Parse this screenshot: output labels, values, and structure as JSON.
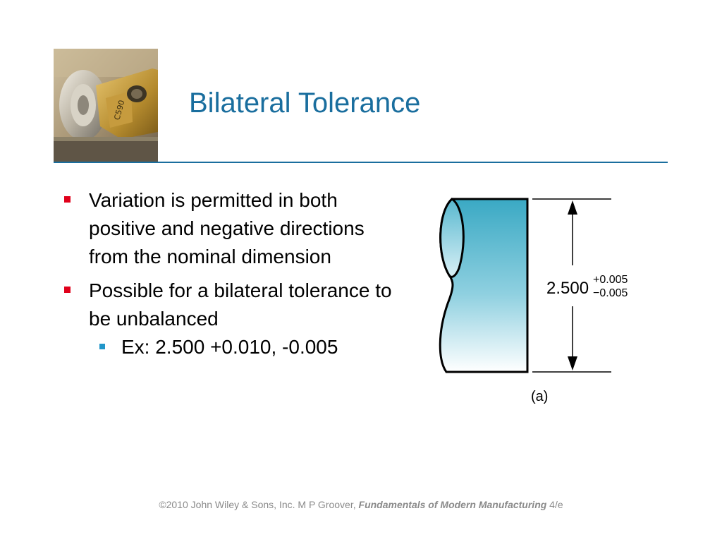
{
  "slide": {
    "title": "Bilateral Tolerance",
    "photo_description_icon": "machining-tool-photo",
    "bullets": [
      {
        "text": "Variation is permitted in both positive and negative directions from the nominal dimension"
      },
      {
        "text": "Possible for a bilateral tolerance to be unbalanced"
      }
    ],
    "sub_bullets": [
      {
        "text": "Ex: 2.500 +0.010, -0.005"
      }
    ],
    "figure": {
      "dimension": "2.500",
      "upper_tolerance": "+0.005",
      "lower_tolerance": "−0.005",
      "caption": "(a)"
    },
    "footer": {
      "prefix": "©2010 John Wiley & Sons, Inc.  M P Groover, ",
      "book_title": "Fundamentals of Modern Manufacturing",
      "edition": " 4/e"
    }
  },
  "colors": {
    "title": "#1a6e9e",
    "rule": "#1a6e9e",
    "bullet_marker": "#e0001b",
    "sub_bullet_marker": "#2196c9",
    "part_fill_top": "#4aafc8",
    "footer_text": "#8a8a8a"
  }
}
